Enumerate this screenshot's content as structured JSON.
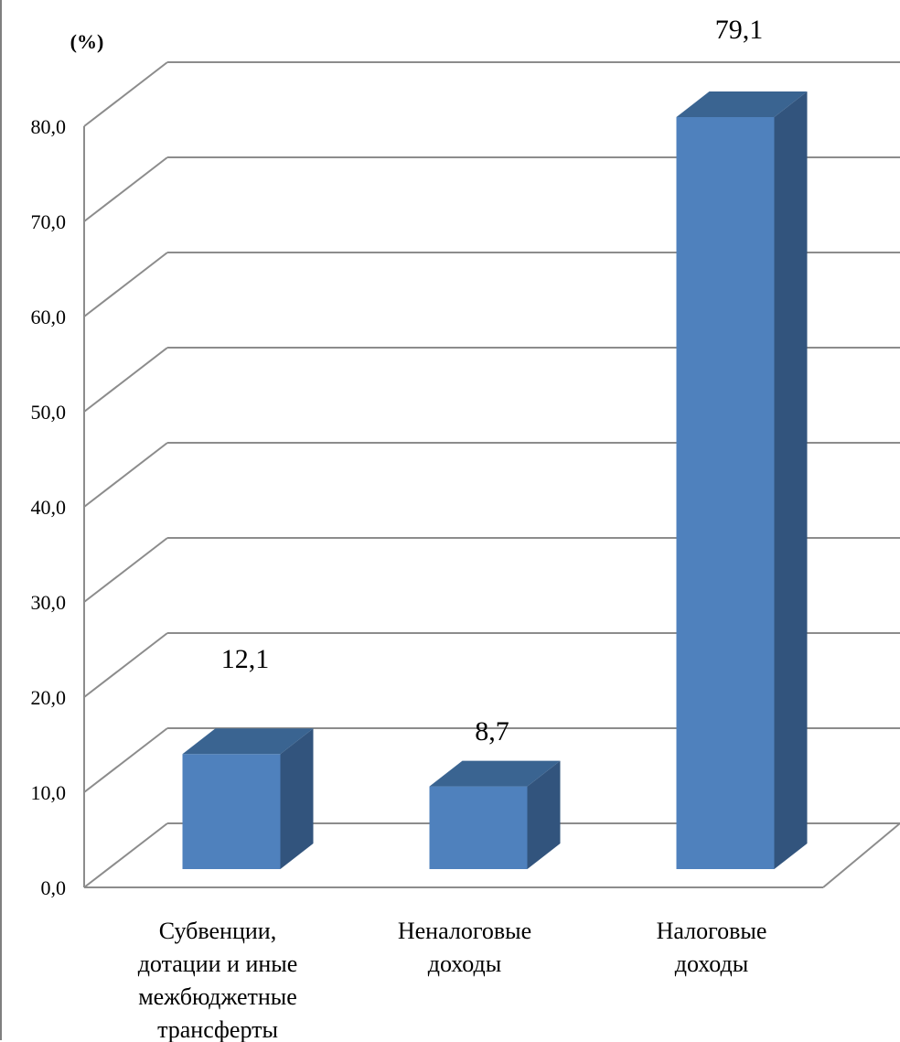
{
  "chart_data": {
    "type": "bar",
    "three_d": true,
    "unit_label": "(%)",
    "categories": [
      [
        "Субвенции,",
        "дотации и иные",
        "межбюджетные",
        "трансферты"
      ],
      [
        "Неналоговые",
        "доходы"
      ],
      [
        "Налоговые",
        "доходы"
      ]
    ],
    "values": [
      12.1,
      8.7,
      79.1
    ],
    "data_labels": [
      "12,1",
      "8,7",
      "79,1"
    ],
    "ylim": [
      0,
      80
    ],
    "yticks": [
      "0,0",
      "10,0",
      "20,0",
      "30,0",
      "40,0",
      "50,0",
      "60,0",
      "70,0",
      "80,0"
    ],
    "grid": true,
    "legend": "none",
    "colors": {
      "bar_front": "#4f81bd",
      "bar_top": "#3a6491",
      "bar_side": "#32547d",
      "grid": "#8c8c8c"
    }
  }
}
